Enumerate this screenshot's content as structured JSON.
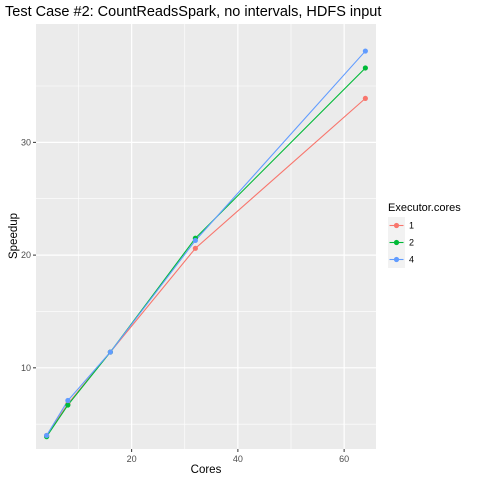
{
  "chart_data": {
    "type": "line",
    "title": "Test Case #2: CountReadsSpark, no intervals, HDFS input",
    "xlabel": "Cores",
    "ylabel": "Speedup",
    "xlim": [
      2,
      66
    ],
    "ylim": [
      2.8,
      40.5
    ],
    "x_ticks": [
      20,
      40,
      60
    ],
    "y_ticks": [
      10,
      20,
      30
    ],
    "grid": true,
    "legend": {
      "title": "Executor.cores",
      "placement": "right"
    },
    "series": [
      {
        "name": "1",
        "color": "#F8766D",
        "x": [
          4,
          8,
          16,
          32,
          64
        ],
        "y": [
          4.0,
          6.8,
          11.4,
          20.6,
          33.9
        ]
      },
      {
        "name": "2",
        "color": "#00BA38",
        "x": [
          4,
          8,
          16,
          32,
          64
        ],
        "y": [
          3.9,
          6.7,
          11.4,
          21.5,
          36.6
        ]
      },
      {
        "name": "4",
        "color": "#619CFF",
        "x": [
          4,
          8,
          16,
          32,
          64
        ],
        "y": [
          4.0,
          7.1,
          11.4,
          21.3,
          38.1
        ]
      }
    ]
  }
}
